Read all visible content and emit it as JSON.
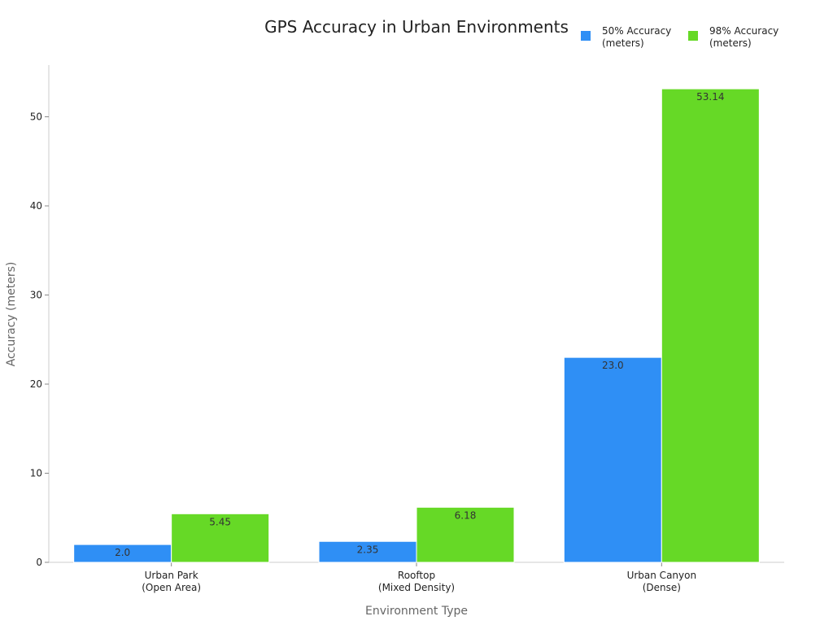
{
  "chart_data": {
    "type": "bar",
    "title": "GPS Accuracy in Urban Environments",
    "xlabel": "Environment Type",
    "ylabel": "Accuracy (meters)",
    "categories": [
      [
        "Urban Park",
        "(Open Area)"
      ],
      [
        "Rooftop",
        "(Mixed Density)"
      ],
      [
        "Urban Canyon",
        "(Dense)"
      ]
    ],
    "series": [
      {
        "name": [
          "50% Accuracy",
          "(meters)"
        ],
        "values": [
          2.0,
          2.35,
          23.0
        ],
        "labels": [
          "2.0",
          "2.35",
          "23.0"
        ],
        "color": "#2f8ff5"
      },
      {
        "name": [
          "98% Accuracy",
          "(meters)"
        ],
        "values": [
          5.45,
          6.18,
          53.14
        ],
        "labels": [
          "5.45",
          "6.18",
          "53.14"
        ],
        "color": "#66d926"
      }
    ],
    "ylim": [
      0,
      55.8
    ],
    "yticks": [
      0,
      10,
      20,
      30,
      40,
      50
    ],
    "grid": false,
    "legend": "top-right"
  }
}
